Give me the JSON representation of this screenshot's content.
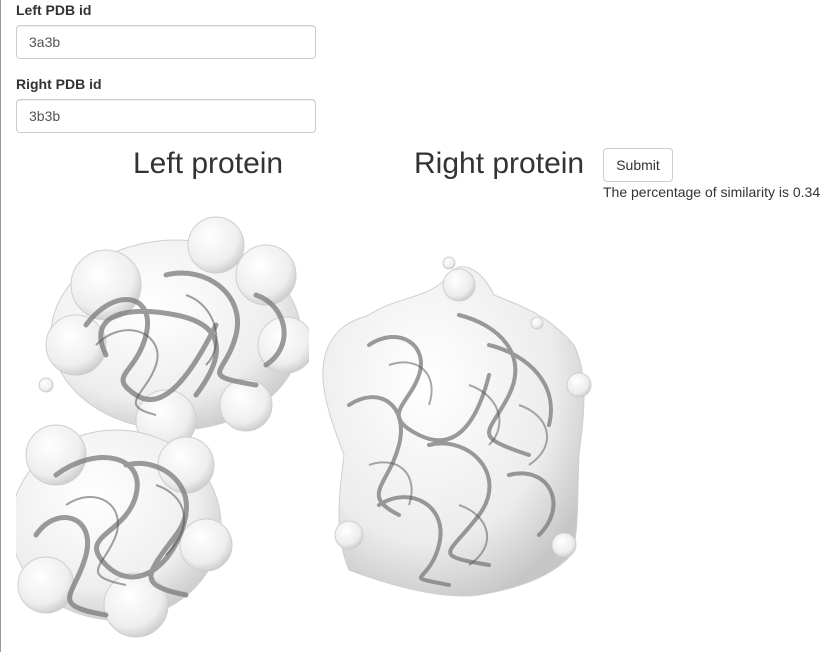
{
  "form": {
    "left_label": "Left PDB id",
    "left_value": "3a3b",
    "right_label": "Right PDB id",
    "right_value": "3b3b",
    "submit_label": "Submit"
  },
  "panels": {
    "left_title": "Left protein",
    "right_title": "Right protein"
  },
  "result": {
    "text": "The percentage of similarity is 0.34"
  }
}
